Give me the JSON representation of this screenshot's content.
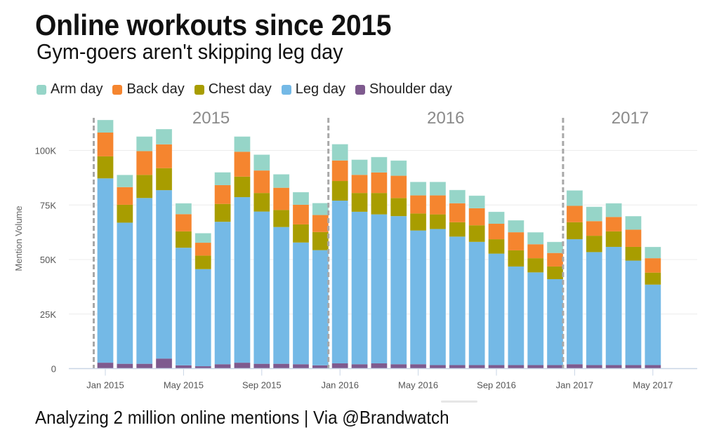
{
  "header": {
    "title": "Online workouts since 2015",
    "subtitle": "Gym-goers aren't skipping leg day"
  },
  "footer": {
    "text": "Analyzing 2 million online mentions | Via @Brandwatch"
  },
  "legend": [
    {
      "label": "Arm day",
      "color": "#96d5c8"
    },
    {
      "label": "Back day",
      "color": "#f5852f"
    },
    {
      "label": "Chest day",
      "color": "#a89d00"
    },
    {
      "label": "Leg day",
      "color": "#74b9e6"
    },
    {
      "label": "Shoulder day",
      "color": "#7e5a8e"
    }
  ],
  "chart_data": {
    "type": "bar",
    "stacked": true,
    "title": "Online workouts since 2015",
    "subtitle": "Gym-goers aren't skipping leg day",
    "xlabel": "",
    "ylabel": "Mention Volume",
    "ylim": [
      0,
      115000
    ],
    "yticks": [
      0,
      25000,
      50000,
      75000,
      100000
    ],
    "ytick_labels": [
      "0",
      "25K",
      "50K",
      "75K",
      "100K"
    ],
    "grid": true,
    "legend_position": "top-left",
    "categories": [
      "Jan 2015",
      "Feb 2015",
      "Mar 2015",
      "Apr 2015",
      "May 2015",
      "Jun 2015",
      "Jul 2015",
      "Aug 2015",
      "Sep 2015",
      "Oct 2015",
      "Nov 2015",
      "Dec 2015",
      "Jan 2016",
      "Feb 2016",
      "Mar 2016",
      "Apr 2016",
      "May 2016",
      "Jun 2016",
      "Jul 2016",
      "Aug 2016",
      "Sep 2016",
      "Oct 2016",
      "Nov 2016",
      "Dec 2016",
      "Jan 2017",
      "Feb 2017",
      "Mar 2017",
      "Apr 2017",
      "May 2017"
    ],
    "xtick_labels": [
      {
        "label": "Jan 2015",
        "index": 0
      },
      {
        "label": "May 2015",
        "index": 4
      },
      {
        "label": "Sep 2015",
        "index": 8
      },
      {
        "label": "Jan 2016",
        "index": 12
      },
      {
        "label": "May 2016",
        "index": 16
      },
      {
        "label": "Sep 2016",
        "index": 20
      },
      {
        "label": "Jan 2017",
        "index": 24
      },
      {
        "label": "May 2017",
        "index": 28
      }
    ],
    "annotations": [
      {
        "label": "2015",
        "start_index": 0,
        "end_index": 11
      },
      {
        "label": "2016",
        "start_index": 12,
        "end_index": 23
      },
      {
        "label": "2017",
        "start_index": 24,
        "end_index": 28
      }
    ],
    "series": [
      {
        "name": "Shoulder day",
        "color": "#7e5a8e",
        "values": [
          2700,
          2200,
          2200,
          4600,
          1500,
          1100,
          2000,
          2700,
          2200,
          2200,
          2000,
          1500,
          2400,
          2000,
          2400,
          2000,
          2000,
          1600,
          1600,
          1600,
          1600,
          1600,
          1600,
          1600,
          2000,
          1600,
          1600,
          1600,
          1600
        ]
      },
      {
        "name": "Leg day",
        "color": "#74b9e6",
        "values": [
          84500,
          64700,
          76000,
          77200,
          53900,
          44500,
          65300,
          75900,
          69800,
          62700,
          55800,
          52800,
          74600,
          69900,
          68300,
          67900,
          61300,
          62400,
          58900,
          56500,
          51100,
          45200,
          42500,
          39400,
          57300,
          51800,
          54200,
          47900,
          36900
        ]
      },
      {
        "name": "Chest day",
        "color": "#a89d00",
        "values": [
          10100,
          8200,
          10600,
          10100,
          7500,
          6200,
          8200,
          9400,
          8500,
          7800,
          8300,
          8300,
          9000,
          8600,
          9800,
          8300,
          7800,
          6700,
          6600,
          7600,
          6600,
          7400,
          6500,
          5800,
          7800,
          7500,
          7100,
          6300,
          5500
        ]
      },
      {
        "name": "Back day",
        "color": "#f5852f",
        "values": [
          10900,
          8100,
          10900,
          10900,
          7900,
          5900,
          8600,
          11400,
          10300,
          10200,
          9000,
          7800,
          9400,
          8300,
          9400,
          10200,
          8300,
          8700,
          8700,
          7800,
          7100,
          8300,
          6400,
          6200,
          7500,
          6700,
          6600,
          7900,
          6600
        ]
      },
      {
        "name": "Arm day",
        "color": "#96d5c8",
        "values": [
          5800,
          5600,
          6700,
          7000,
          5000,
          4400,
          5900,
          7000,
          7300,
          6200,
          5800,
          5500,
          7500,
          7000,
          7100,
          7000,
          6200,
          6200,
          6100,
          5800,
          5500,
          5500,
          5500,
          5100,
          7100,
          6600,
          6300,
          6200,
          5200
        ]
      }
    ]
  }
}
